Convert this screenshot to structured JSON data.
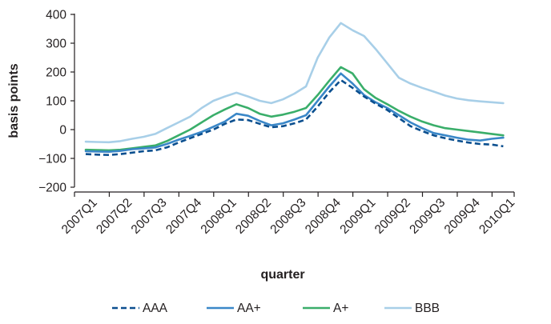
{
  "chart_data": {
    "type": "line",
    "title": "",
    "xlabel": "quarter",
    "ylabel": "basis points",
    "ylim": [
      -200,
      400
    ],
    "yticks": [
      -200,
      -100,
      0,
      100,
      200,
      300,
      400
    ],
    "ytick_labels": [
      "−200",
      "−100",
      "0",
      "100",
      "200",
      "300",
      "400"
    ],
    "categories": [
      "2007Q1",
      "2007Q2",
      "2007Q3",
      "2007Q4",
      "2008Q1",
      "2008Q2",
      "2008Q3",
      "2008Q4",
      "2009Q1",
      "2009Q2",
      "2009Q3",
      "2009Q4",
      "2010Q1"
    ],
    "x": [
      2007.0,
      2007.083,
      2007.167,
      2007.25,
      2007.333,
      2007.417,
      2007.5,
      2007.583,
      2007.667,
      2007.75,
      2007.833,
      2007.917,
      2008.0,
      2008.083,
      2008.167,
      2008.25,
      2008.333,
      2008.417,
      2008.5,
      2008.583,
      2008.667,
      2008.75,
      2008.833,
      2008.917,
      2009.0,
      2009.083,
      2009.167,
      2009.25,
      2009.333,
      2009.417,
      2009.5,
      2009.583,
      2009.667,
      2009.75,
      2009.833,
      2009.917,
      2010.0
    ],
    "grid": false,
    "legend_position": "bottom",
    "series": [
      {
        "name": "AAA",
        "color": "#0b4f8f",
        "dash": "dashed",
        "values": [
          -85,
          -87,
          -88,
          -85,
          -80,
          -75,
          -72,
          -62,
          -45,
          -30,
          -15,
          0,
          20,
          35,
          33,
          20,
          8,
          12,
          22,
          35,
          80,
          130,
          172,
          145,
          115,
          90,
          68,
          40,
          12,
          -5,
          -20,
          -30,
          -38,
          -45,
          -50,
          -52,
          -58
        ]
      },
      {
        "name": "AA+",
        "color": "#3a87c8",
        "dash": "solid",
        "values": [
          -75,
          -76,
          -77,
          -74,
          -68,
          -65,
          -62,
          -50,
          -35,
          -22,
          -8,
          10,
          28,
          55,
          48,
          30,
          15,
          22,
          35,
          50,
          100,
          150,
          195,
          160,
          120,
          95,
          75,
          50,
          25,
          5,
          -12,
          -20,
          -28,
          -35,
          -38,
          -32,
          -28
        ]
      },
      {
        "name": "A+",
        "color": "#3aae6a",
        "dash": "solid",
        "values": [
          -70,
          -71,
          -72,
          -70,
          -65,
          -60,
          -55,
          -40,
          -20,
          0,
          25,
          50,
          70,
          88,
          75,
          55,
          45,
          52,
          62,
          75,
          120,
          170,
          217,
          195,
          140,
          110,
          88,
          65,
          45,
          28,
          15,
          5,
          0,
          -5,
          -10,
          -15,
          -20
        ]
      },
      {
        "name": "BBB",
        "color": "#a8cfe8",
        "dash": "solid",
        "values": [
          -42,
          -43,
          -44,
          -40,
          -32,
          -25,
          -15,
          5,
          25,
          45,
          75,
          100,
          115,
          128,
          115,
          100,
          92,
          105,
          125,
          150,
          250,
          320,
          370,
          345,
          325,
          280,
          230,
          180,
          160,
          145,
          132,
          118,
          108,
          102,
          98,
          95,
          92
        ]
      }
    ]
  }
}
